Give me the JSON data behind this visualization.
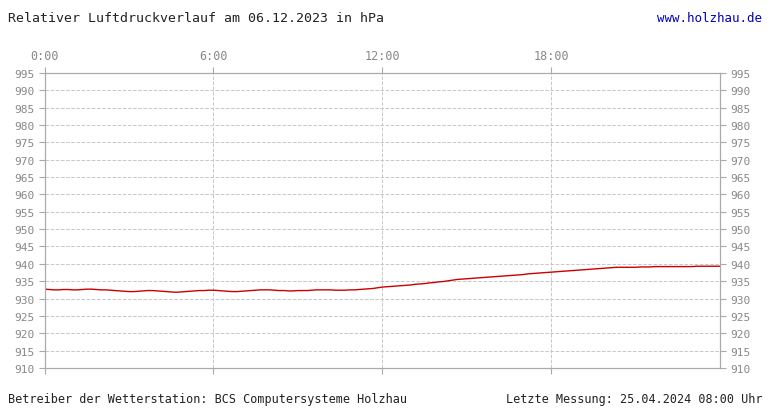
{
  "title": "Relativer Luftdruckverlauf am 06.12.2023 in hPa",
  "url": "www.holzhau.de",
  "footer_left": "Betreiber der Wetterstation: BCS Computersysteme Holzhau",
  "footer_right": "Letzte Messung: 25.04.2024 08:00 Uhr",
  "y_min": 910,
  "y_max": 995,
  "y_tick_step": 5,
  "x_min": 0,
  "x_max": 1440,
  "x_ticks": [
    0,
    360,
    720,
    1080
  ],
  "x_tick_labels": [
    "0:00",
    "6:00",
    "12:00",
    "18:00"
  ],
  "line_color": "#cc0000",
  "grid_color": "#c8c8c8",
  "background_color": "#ffffff",
  "plot_bg_color": "#ffffff",
  "label_color": "#888888",
  "title_color": "#222222",
  "url_color": "#0000bb",
  "footer_color": "#222222",
  "pressure_data": [
    [
      0,
      932.7
    ],
    [
      10,
      932.6
    ],
    [
      20,
      932.5
    ],
    [
      30,
      932.5
    ],
    [
      40,
      932.6
    ],
    [
      50,
      932.6
    ],
    [
      60,
      932.5
    ],
    [
      70,
      932.5
    ],
    [
      80,
      932.6
    ],
    [
      90,
      932.7
    ],
    [
      100,
      932.7
    ],
    [
      110,
      932.6
    ],
    [
      120,
      932.5
    ],
    [
      130,
      932.5
    ],
    [
      140,
      932.4
    ],
    [
      150,
      932.3
    ],
    [
      160,
      932.2
    ],
    [
      170,
      932.1
    ],
    [
      180,
      932.0
    ],
    [
      190,
      932.0
    ],
    [
      200,
      932.1
    ],
    [
      210,
      932.2
    ],
    [
      220,
      932.3
    ],
    [
      230,
      932.3
    ],
    [
      240,
      932.2
    ],
    [
      250,
      932.1
    ],
    [
      260,
      932.0
    ],
    [
      270,
      931.9
    ],
    [
      280,
      931.8
    ],
    [
      290,
      931.9
    ],
    [
      300,
      932.0
    ],
    [
      310,
      932.1
    ],
    [
      320,
      932.2
    ],
    [
      330,
      932.3
    ],
    [
      340,
      932.3
    ],
    [
      350,
      932.4
    ],
    [
      360,
      932.4
    ],
    [
      370,
      932.3
    ],
    [
      380,
      932.2
    ],
    [
      390,
      932.1
    ],
    [
      400,
      932.0
    ],
    [
      410,
      932.0
    ],
    [
      420,
      932.1
    ],
    [
      430,
      932.2
    ],
    [
      440,
      932.3
    ],
    [
      450,
      932.4
    ],
    [
      460,
      932.5
    ],
    [
      470,
      932.5
    ],
    [
      480,
      932.5
    ],
    [
      490,
      932.4
    ],
    [
      500,
      932.3
    ],
    [
      510,
      932.3
    ],
    [
      520,
      932.2
    ],
    [
      530,
      932.2
    ],
    [
      540,
      932.3
    ],
    [
      550,
      932.3
    ],
    [
      560,
      932.3
    ],
    [
      570,
      932.4
    ],
    [
      580,
      932.5
    ],
    [
      590,
      932.5
    ],
    [
      600,
      932.5
    ],
    [
      610,
      932.5
    ],
    [
      620,
      932.4
    ],
    [
      630,
      932.4
    ],
    [
      640,
      932.4
    ],
    [
      650,
      932.5
    ],
    [
      660,
      932.5
    ],
    [
      670,
      932.6
    ],
    [
      680,
      932.7
    ],
    [
      690,
      932.8
    ],
    [
      700,
      932.9
    ],
    [
      710,
      933.1
    ],
    [
      720,
      933.3
    ],
    [
      730,
      933.4
    ],
    [
      740,
      933.5
    ],
    [
      750,
      933.6
    ],
    [
      760,
      933.7
    ],
    [
      770,
      933.8
    ],
    [
      780,
      933.9
    ],
    [
      790,
      934.1
    ],
    [
      800,
      934.2
    ],
    [
      810,
      934.3
    ],
    [
      820,
      934.5
    ],
    [
      830,
      934.6
    ],
    [
      840,
      934.8
    ],
    [
      850,
      934.9
    ],
    [
      860,
      935.1
    ],
    [
      870,
      935.3
    ],
    [
      880,
      935.5
    ],
    [
      890,
      935.6
    ],
    [
      900,
      935.7
    ],
    [
      910,
      935.8
    ],
    [
      920,
      935.9
    ],
    [
      930,
      936.0
    ],
    [
      940,
      936.1
    ],
    [
      950,
      936.2
    ],
    [
      960,
      936.3
    ],
    [
      970,
      936.4
    ],
    [
      980,
      936.5
    ],
    [
      990,
      936.6
    ],
    [
      1000,
      936.7
    ],
    [
      1010,
      936.8
    ],
    [
      1020,
      936.9
    ],
    [
      1030,
      937.1
    ],
    [
      1040,
      937.2
    ],
    [
      1050,
      937.3
    ],
    [
      1060,
      937.4
    ],
    [
      1070,
      937.5
    ],
    [
      1080,
      937.6
    ],
    [
      1090,
      937.7
    ],
    [
      1100,
      937.8
    ],
    [
      1110,
      937.9
    ],
    [
      1120,
      938.0
    ],
    [
      1130,
      938.1
    ],
    [
      1140,
      938.2
    ],
    [
      1150,
      938.3
    ],
    [
      1160,
      938.4
    ],
    [
      1170,
      938.5
    ],
    [
      1180,
      938.6
    ],
    [
      1190,
      938.7
    ],
    [
      1200,
      938.8
    ],
    [
      1210,
      938.9
    ],
    [
      1220,
      939.0
    ],
    [
      1230,
      939.0
    ],
    [
      1240,
      939.0
    ],
    [
      1250,
      939.0
    ],
    [
      1260,
      939.0
    ],
    [
      1270,
      939.1
    ],
    [
      1280,
      939.1
    ],
    [
      1290,
      939.1
    ],
    [
      1300,
      939.2
    ],
    [
      1310,
      939.2
    ],
    [
      1320,
      939.2
    ],
    [
      1330,
      939.2
    ],
    [
      1340,
      939.2
    ],
    [
      1350,
      939.2
    ],
    [
      1360,
      939.2
    ],
    [
      1370,
      939.2
    ],
    [
      1380,
      939.2
    ],
    [
      1390,
      939.3
    ],
    [
      1400,
      939.3
    ],
    [
      1410,
      939.3
    ],
    [
      1420,
      939.3
    ],
    [
      1430,
      939.3
    ],
    [
      1440,
      939.3
    ]
  ]
}
